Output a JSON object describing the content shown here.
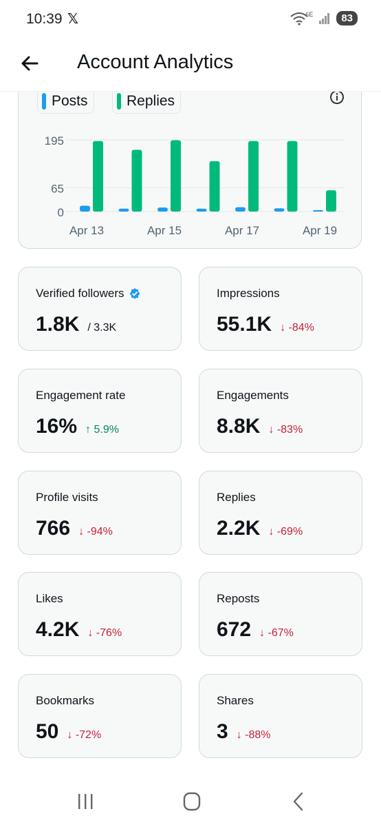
{
  "status_bar": {
    "time": "10:39",
    "app_icon": "x-logo-icon",
    "network": "6E",
    "battery": "83"
  },
  "header": {
    "title": "Account Analytics",
    "back_icon": "back-arrow-icon"
  },
  "chart_data": {
    "type": "bar",
    "categories": [
      "Apr 13",
      "Apr 14",
      "Apr 15",
      "Apr 16",
      "Apr 17",
      "Apr 18",
      "Apr 19"
    ],
    "x_tick_labels": [
      "Apr 13",
      "Apr 15",
      "Apr 17",
      "Apr 19"
    ],
    "y_ticks": [
      "0",
      "65",
      "195"
    ],
    "series": [
      {
        "name": "Posts",
        "color": "#1d9bf0",
        "values": [
          16,
          8,
          11,
          8,
          12,
          9,
          4
        ]
      },
      {
        "name": "Replies",
        "color": "#00ba7c",
        "values": [
          192,
          168,
          194,
          137,
          192,
          192,
          58
        ]
      }
    ],
    "ylim": [
      0,
      195
    ],
    "grid": true
  },
  "metrics": [
    {
      "label": "Verified followers",
      "value": "1.8K",
      "sub": "/ 3.3K",
      "change": "",
      "verified": true
    },
    {
      "label": "Impressions",
      "value": "55.1K",
      "change": "↓ -84%",
      "direction": "down"
    },
    {
      "label": "Engagement rate",
      "value": "16%",
      "change": "↑ 5.9%",
      "direction": "up"
    },
    {
      "label": "Engagements",
      "value": "8.8K",
      "change": "↓ -83%",
      "direction": "down"
    },
    {
      "label": "Profile visits",
      "value": "766",
      "change": "↓ -94%",
      "direction": "down"
    },
    {
      "label": "Replies",
      "value": "2.2K",
      "change": "↓ -69%",
      "direction": "down"
    },
    {
      "label": "Likes",
      "value": "4.2K",
      "change": "↓ -76%",
      "direction": "down"
    },
    {
      "label": "Reposts",
      "value": "672",
      "change": "↓ -67%",
      "direction": "down"
    },
    {
      "label": "Bookmarks",
      "value": "50",
      "change": "↓ -72%",
      "direction": "down"
    },
    {
      "label": "Shares",
      "value": "3",
      "change": "↓ -88%",
      "direction": "down"
    }
  ],
  "nav": {
    "recent": "recent-apps-icon",
    "home": "home-icon",
    "back": "back-icon"
  }
}
